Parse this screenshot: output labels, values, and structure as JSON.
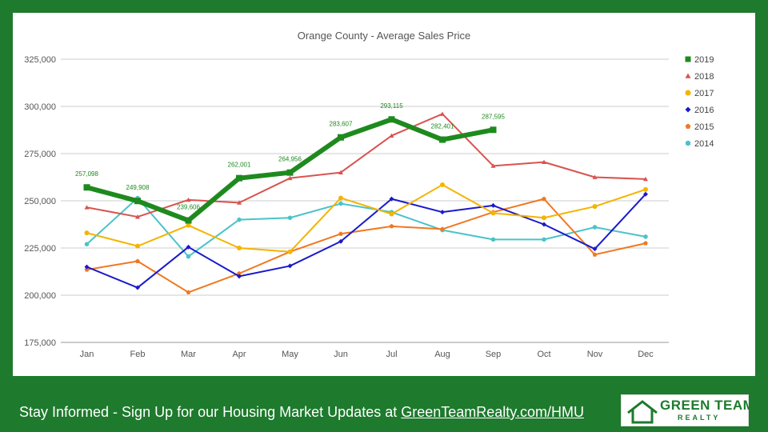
{
  "chart_data": {
    "type": "line",
    "title": "Orange County - Average Sales Price",
    "categories": [
      "Jan",
      "Feb",
      "Mar",
      "Apr",
      "May",
      "Jun",
      "Jul",
      "Aug",
      "Sep",
      "Oct",
      "Nov",
      "Dec"
    ],
    "ylim": [
      175000,
      325000
    ],
    "yticks": [
      175000,
      200000,
      225000,
      250000,
      275000,
      300000,
      325000
    ],
    "ytick_labels": [
      "175,000",
      "200,000",
      "225,000",
      "250,000",
      "275,000",
      "300,000",
      "325,000"
    ],
    "grid": true,
    "legend_position": "right",
    "series": [
      {
        "name": "2019",
        "color": "#1e8a1e",
        "marker": "square",
        "values": [
          257098,
          249908,
          239606,
          262001,
          264956,
          283607,
          293115,
          282401,
          287595,
          null,
          null,
          null
        ],
        "data_labels": [
          "257,098",
          "249,908",
          "239,606",
          "262,001",
          "264,956",
          "283,607",
          "293,115",
          "282,401",
          "287,595"
        ]
      },
      {
        "name": "2018",
        "color": "#d9534f",
        "marker": "triangle",
        "values": [
          246500,
          241500,
          250500,
          249000,
          262000,
          265000,
          284500,
          296000,
          268500,
          270500,
          262500,
          261500
        ]
      },
      {
        "name": "2017",
        "color": "#f4b400",
        "marker": "circle",
        "values": [
          233000,
          226000,
          237000,
          225000,
          223000,
          251500,
          243000,
          258500,
          243500,
          241000,
          247000,
          256000
        ]
      },
      {
        "name": "2016",
        "color": "#1a1acc",
        "marker": "diamond",
        "values": [
          215000,
          204000,
          225500,
          210000,
          215500,
          228500,
          251000,
          244000,
          247500,
          237500,
          224500,
          253500
        ]
      },
      {
        "name": "2015",
        "color": "#f07820",
        "marker": "pentagon",
        "values": [
          213500,
          218000,
          201500,
          211500,
          223000,
          232500,
          236500,
          235000,
          244000,
          251000,
          221500,
          227500
        ]
      },
      {
        "name": "2014",
        "color": "#4ac3c8",
        "marker": "hexagon",
        "values": [
          227000,
          251500,
          220500,
          240000,
          241000,
          248500,
          244000,
          234500,
          229500,
          229500,
          236000,
          231000
        ]
      }
    ]
  },
  "footer": {
    "text": "Stay Informed - Sign Up for our Housing Market Updates at ",
    "link": "GreenTeamRealty.com/HMU"
  },
  "logo": {
    "line1": "GREEN TEAM",
    "line2": "REALTY",
    "color": "#1e7a2d"
  }
}
